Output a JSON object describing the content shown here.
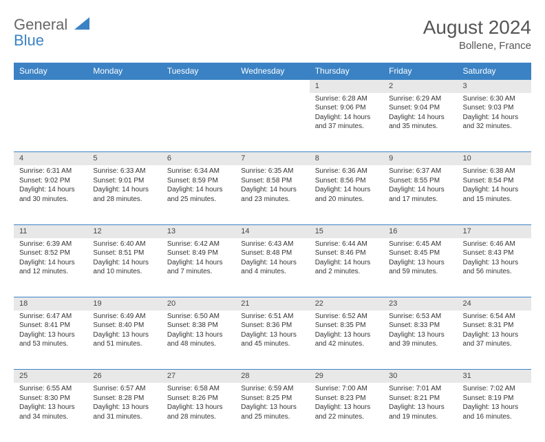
{
  "brand": {
    "general": "General",
    "blue": "Blue"
  },
  "header": {
    "title": "August 2024",
    "location": "Bollene, France"
  },
  "colors": {
    "accent": "#3b82c4",
    "daynum_bg": "#e8e8e8",
    "text": "#333333",
    "header_text": "#555555"
  },
  "weekdays": [
    "Sunday",
    "Monday",
    "Tuesday",
    "Wednesday",
    "Thursday",
    "Friday",
    "Saturday"
  ],
  "weeks": [
    {
      "nums": [
        "",
        "",
        "",
        "",
        "1",
        "2",
        "3"
      ],
      "cells": [
        null,
        null,
        null,
        null,
        {
          "sunrise": "Sunrise: 6:28 AM",
          "sunset": "Sunset: 9:06 PM",
          "day": "Daylight: 14 hours and 37 minutes."
        },
        {
          "sunrise": "Sunrise: 6:29 AM",
          "sunset": "Sunset: 9:04 PM",
          "day": "Daylight: 14 hours and 35 minutes."
        },
        {
          "sunrise": "Sunrise: 6:30 AM",
          "sunset": "Sunset: 9:03 PM",
          "day": "Daylight: 14 hours and 32 minutes."
        }
      ]
    },
    {
      "nums": [
        "4",
        "5",
        "6",
        "7",
        "8",
        "9",
        "10"
      ],
      "cells": [
        {
          "sunrise": "Sunrise: 6:31 AM",
          "sunset": "Sunset: 9:02 PM",
          "day": "Daylight: 14 hours and 30 minutes."
        },
        {
          "sunrise": "Sunrise: 6:33 AM",
          "sunset": "Sunset: 9:01 PM",
          "day": "Daylight: 14 hours and 28 minutes."
        },
        {
          "sunrise": "Sunrise: 6:34 AM",
          "sunset": "Sunset: 8:59 PM",
          "day": "Daylight: 14 hours and 25 minutes."
        },
        {
          "sunrise": "Sunrise: 6:35 AM",
          "sunset": "Sunset: 8:58 PM",
          "day": "Daylight: 14 hours and 23 minutes."
        },
        {
          "sunrise": "Sunrise: 6:36 AM",
          "sunset": "Sunset: 8:56 PM",
          "day": "Daylight: 14 hours and 20 minutes."
        },
        {
          "sunrise": "Sunrise: 6:37 AM",
          "sunset": "Sunset: 8:55 PM",
          "day": "Daylight: 14 hours and 17 minutes."
        },
        {
          "sunrise": "Sunrise: 6:38 AM",
          "sunset": "Sunset: 8:54 PM",
          "day": "Daylight: 14 hours and 15 minutes."
        }
      ]
    },
    {
      "nums": [
        "11",
        "12",
        "13",
        "14",
        "15",
        "16",
        "17"
      ],
      "cells": [
        {
          "sunrise": "Sunrise: 6:39 AM",
          "sunset": "Sunset: 8:52 PM",
          "day": "Daylight: 14 hours and 12 minutes."
        },
        {
          "sunrise": "Sunrise: 6:40 AM",
          "sunset": "Sunset: 8:51 PM",
          "day": "Daylight: 14 hours and 10 minutes."
        },
        {
          "sunrise": "Sunrise: 6:42 AM",
          "sunset": "Sunset: 8:49 PM",
          "day": "Daylight: 14 hours and 7 minutes."
        },
        {
          "sunrise": "Sunrise: 6:43 AM",
          "sunset": "Sunset: 8:48 PM",
          "day": "Daylight: 14 hours and 4 minutes."
        },
        {
          "sunrise": "Sunrise: 6:44 AM",
          "sunset": "Sunset: 8:46 PM",
          "day": "Daylight: 14 hours and 2 minutes."
        },
        {
          "sunrise": "Sunrise: 6:45 AM",
          "sunset": "Sunset: 8:45 PM",
          "day": "Daylight: 13 hours and 59 minutes."
        },
        {
          "sunrise": "Sunrise: 6:46 AM",
          "sunset": "Sunset: 8:43 PM",
          "day": "Daylight: 13 hours and 56 minutes."
        }
      ]
    },
    {
      "nums": [
        "18",
        "19",
        "20",
        "21",
        "22",
        "23",
        "24"
      ],
      "cells": [
        {
          "sunrise": "Sunrise: 6:47 AM",
          "sunset": "Sunset: 8:41 PM",
          "day": "Daylight: 13 hours and 53 minutes."
        },
        {
          "sunrise": "Sunrise: 6:49 AM",
          "sunset": "Sunset: 8:40 PM",
          "day": "Daylight: 13 hours and 51 minutes."
        },
        {
          "sunrise": "Sunrise: 6:50 AM",
          "sunset": "Sunset: 8:38 PM",
          "day": "Daylight: 13 hours and 48 minutes."
        },
        {
          "sunrise": "Sunrise: 6:51 AM",
          "sunset": "Sunset: 8:36 PM",
          "day": "Daylight: 13 hours and 45 minutes."
        },
        {
          "sunrise": "Sunrise: 6:52 AM",
          "sunset": "Sunset: 8:35 PM",
          "day": "Daylight: 13 hours and 42 minutes."
        },
        {
          "sunrise": "Sunrise: 6:53 AM",
          "sunset": "Sunset: 8:33 PM",
          "day": "Daylight: 13 hours and 39 minutes."
        },
        {
          "sunrise": "Sunrise: 6:54 AM",
          "sunset": "Sunset: 8:31 PM",
          "day": "Daylight: 13 hours and 37 minutes."
        }
      ]
    },
    {
      "nums": [
        "25",
        "26",
        "27",
        "28",
        "29",
        "30",
        "31"
      ],
      "cells": [
        {
          "sunrise": "Sunrise: 6:55 AM",
          "sunset": "Sunset: 8:30 PM",
          "day": "Daylight: 13 hours and 34 minutes."
        },
        {
          "sunrise": "Sunrise: 6:57 AM",
          "sunset": "Sunset: 8:28 PM",
          "day": "Daylight: 13 hours and 31 minutes."
        },
        {
          "sunrise": "Sunrise: 6:58 AM",
          "sunset": "Sunset: 8:26 PM",
          "day": "Daylight: 13 hours and 28 minutes."
        },
        {
          "sunrise": "Sunrise: 6:59 AM",
          "sunset": "Sunset: 8:25 PM",
          "day": "Daylight: 13 hours and 25 minutes."
        },
        {
          "sunrise": "Sunrise: 7:00 AM",
          "sunset": "Sunset: 8:23 PM",
          "day": "Daylight: 13 hours and 22 minutes."
        },
        {
          "sunrise": "Sunrise: 7:01 AM",
          "sunset": "Sunset: 8:21 PM",
          "day": "Daylight: 13 hours and 19 minutes."
        },
        {
          "sunrise": "Sunrise: 7:02 AM",
          "sunset": "Sunset: 8:19 PM",
          "day": "Daylight: 13 hours and 16 minutes."
        }
      ]
    }
  ]
}
